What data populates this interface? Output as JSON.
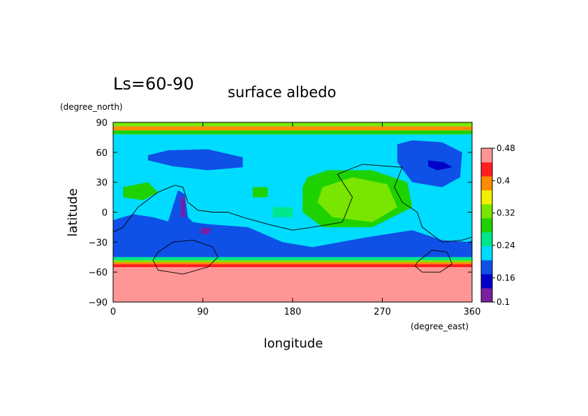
{
  "header": {
    "season": "Ls=60-90",
    "title": "surface albedo"
  },
  "chart_data": {
    "type": "heatmap",
    "title": "surface albedo",
    "subtitle": "Ls=60-90",
    "xlabel": "longitude",
    "ylabel": "latitude",
    "x_units": "(degree_east)",
    "y_units": "(degree_north)",
    "xlim": [
      0,
      360
    ],
    "ylim": [
      -90,
      90
    ],
    "x_ticks": [
      0,
      90,
      180,
      270,
      360
    ],
    "y_ticks": [
      90,
      60,
      30,
      0,
      -30,
      -60,
      -90
    ],
    "x_tick_labels": [
      "0",
      "90",
      "180",
      "270",
      "360"
    ],
    "y_tick_labels": [
      "90",
      "60",
      "30",
      "0",
      "−30",
      "−60",
      "−90"
    ],
    "grid": false,
    "colorbar": {
      "levels": [
        0.1,
        0.12,
        0.14,
        0.16,
        0.18,
        0.2,
        0.22,
        0.24,
        0.26,
        0.28,
        0.3,
        0.32,
        0.34,
        0.36,
        0.38,
        0.4,
        0.42,
        0.44,
        0.46,
        0.48
      ],
      "tick_labels": [
        "0.1",
        "0.16",
        "0.24",
        "0.32",
        "0.4",
        "0.48"
      ],
      "colors": [
        "#7a1fa0",
        "#0000c8",
        "#0f50e6",
        "#00dcff",
        "#00e68c",
        "#1ed200",
        "#78e600",
        "#f0f000",
        "#ff8c00",
        "#ff1e1e",
        "#ff9696"
      ]
    },
    "zonal_bands": [
      {
        "lat": [
          -90,
          -55
        ],
        "albedo": 0.48
      },
      {
        "lat": [
          -55,
          -52
        ],
        "albedo": 0.44
      },
      {
        "lat": [
          -52,
          -50
        ],
        "albedo": 0.4
      },
      {
        "lat": [
          -50,
          -48
        ],
        "albedo": 0.3
      },
      {
        "lat": [
          -48,
          -45
        ],
        "albedo": 0.22
      },
      {
        "lat": [
          78,
          82
        ],
        "albedo": 0.26
      },
      {
        "lat": [
          82,
          86
        ],
        "albedo": 0.4
      },
      {
        "lat": [
          86,
          90
        ],
        "albedo": 0.3
      }
    ],
    "regions": [
      {
        "albedo": 0.2,
        "points": [
          [
            0,
            -45
          ],
          [
            360,
            -45
          ],
          [
            360,
            78
          ],
          [
            0,
            78
          ]
        ]
      },
      {
        "albedo": 0.16,
        "points": [
          [
            0,
            -45
          ],
          [
            360,
            -45
          ],
          [
            360,
            -30
          ],
          [
            330,
            -28
          ],
          [
            300,
            -18
          ],
          [
            255,
            -25
          ],
          [
            200,
            -35
          ],
          [
            170,
            -30
          ],
          [
            135,
            -15
          ],
          [
            95,
            -12
          ],
          [
            80,
            -10
          ],
          [
            65,
            -12
          ],
          [
            40,
            -5
          ],
          [
            20,
            -2
          ],
          [
            0,
            -8
          ]
        ]
      },
      {
        "albedo": 0.14,
        "points": [
          [
            0,
            -45
          ],
          [
            360,
            -45
          ],
          [
            360,
            -28
          ],
          [
            345,
            -38
          ],
          [
            320,
            -30
          ],
          [
            300,
            -28
          ],
          [
            260,
            -38
          ],
          [
            200,
            -40
          ],
          [
            160,
            -30
          ],
          [
            120,
            -25
          ],
          [
            90,
            -20
          ],
          [
            75,
            -5
          ],
          [
            72,
            18
          ],
          [
            65,
            22
          ],
          [
            55,
            -10
          ],
          [
            35,
            -20
          ],
          [
            15,
            -22
          ],
          [
            0,
            -20
          ]
        ]
      },
      {
        "albedo": 0.16,
        "points": [
          [
            35,
            57
          ],
          [
            55,
            62
          ],
          [
            95,
            63
          ],
          [
            130,
            55
          ],
          [
            130,
            45
          ],
          [
            95,
            42
          ],
          [
            60,
            46
          ],
          [
            35,
            52
          ]
        ]
      },
      {
        "albedo": 0.14,
        "points": [
          [
            60,
            60
          ],
          [
            80,
            60
          ],
          [
            95,
            52
          ],
          [
            85,
            45
          ],
          [
            68,
            48
          ]
        ]
      },
      {
        "albedo": 0.16,
        "points": [
          [
            285,
            68
          ],
          [
            300,
            72
          ],
          [
            330,
            70
          ],
          [
            350,
            60
          ],
          [
            348,
            35
          ],
          [
            330,
            25
          ],
          [
            300,
            30
          ],
          [
            285,
            50
          ]
        ]
      },
      {
        "albedo": 0.14,
        "points": [
          [
            305,
            65
          ],
          [
            325,
            60
          ],
          [
            345,
            55
          ],
          [
            345,
            38
          ],
          [
            330,
            28
          ],
          [
            320,
            40
          ],
          [
            305,
            55
          ]
        ]
      },
      {
        "albedo": 0.12,
        "points": [
          [
            316,
            52
          ],
          [
            332,
            50
          ],
          [
            340,
            45
          ],
          [
            325,
            42
          ],
          [
            316,
            46
          ]
        ]
      },
      {
        "albedo": 0.26,
        "points": [
          [
            195,
            35
          ],
          [
            215,
            42
          ],
          [
            260,
            42
          ],
          [
            295,
            30
          ],
          [
            300,
            5
          ],
          [
            260,
            -15
          ],
          [
            210,
            -15
          ],
          [
            190,
            0
          ],
          [
            190,
            25
          ]
        ]
      },
      {
        "albedo": 0.3,
        "points": [
          [
            210,
            25
          ],
          [
            240,
            35
          ],
          [
            275,
            28
          ],
          [
            285,
            5
          ],
          [
            260,
            -10
          ],
          [
            220,
            -5
          ],
          [
            205,
            10
          ]
        ]
      },
      {
        "albedo": 0.26,
        "points": [
          [
            10,
            25
          ],
          [
            35,
            30
          ],
          [
            45,
            20
          ],
          [
            30,
            12
          ],
          [
            10,
            15
          ]
        ]
      },
      {
        "albedo": 0.26,
        "points": [
          [
            140,
            25
          ],
          [
            155,
            25
          ],
          [
            155,
            15
          ],
          [
            140,
            15
          ]
        ]
      },
      {
        "albedo": 0.24,
        "points": [
          [
            160,
            5
          ],
          [
            180,
            5
          ],
          [
            180,
            -5
          ],
          [
            160,
            -5
          ]
        ]
      },
      {
        "albedo": 0.1,
        "points": [
          [
            68,
            15
          ],
          [
            72,
            15
          ],
          [
            72,
            -5
          ],
          [
            68,
            -5
          ]
        ]
      },
      {
        "albedo": 0.1,
        "points": [
          [
            88,
            -16
          ],
          [
            98,
            -16
          ],
          [
            96,
            -22
          ],
          [
            88,
            -22
          ]
        ]
      }
    ],
    "contours": [
      {
        "points": [
          [
            0,
            -20
          ],
          [
            10,
            -15
          ],
          [
            25,
            5
          ],
          [
            45,
            20
          ],
          [
            62,
            27
          ],
          [
            70,
            25
          ],
          [
            75,
            10
          ],
          [
            85,
            2
          ],
          [
            100,
            0
          ],
          [
            115,
            0
          ],
          [
            130,
            -5
          ],
          [
            155,
            -12
          ],
          [
            180,
            -18
          ],
          [
            200,
            -15
          ],
          [
            230,
            -10
          ],
          [
            240,
            15
          ],
          [
            225,
            38
          ],
          [
            250,
            48
          ],
          [
            290,
            45
          ],
          [
            282,
            25
          ],
          [
            290,
            10
          ],
          [
            305,
            0
          ],
          [
            310,
            -15
          ],
          [
            330,
            -30
          ],
          [
            350,
            -28
          ],
          [
            360,
            -25
          ]
        ]
      },
      {
        "points": [
          [
            45,
            -40
          ],
          [
            60,
            -30
          ],
          [
            80,
            -28
          ],
          [
            100,
            -35
          ],
          [
            105,
            -45
          ],
          [
            95,
            -55
          ],
          [
            70,
            -62
          ],
          [
            45,
            -58
          ],
          [
            40,
            -48
          ],
          [
            45,
            -40
          ]
        ]
      },
      {
        "points": [
          [
            305,
            -50
          ],
          [
            320,
            -38
          ],
          [
            335,
            -40
          ],
          [
            340,
            -52
          ],
          [
            328,
            -60
          ],
          [
            310,
            -60
          ],
          [
            303,
            -54
          ],
          [
            305,
            -50
          ]
        ]
      }
    ]
  }
}
